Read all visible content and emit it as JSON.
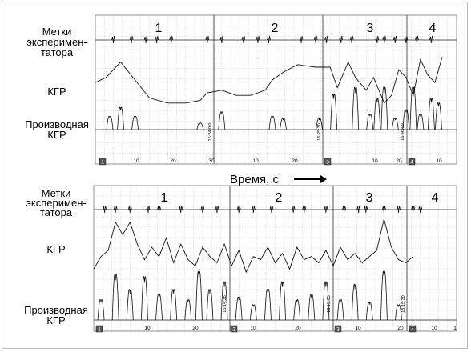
{
  "time_axis_label": "Время, с",
  "panels": [
    {
      "labels": [
        "Метки",
        "эксперимен-",
        "татора",
        "КГР",
        "Производная",
        "КГР"
      ],
      "segment_numbers": [
        "1",
        "2",
        "3",
        "4"
      ],
      "ticks": [
        "10",
        "20",
        "30",
        "10",
        "20",
        "10",
        "20",
        "10"
      ],
      "timestamps": [
        "16:24:0:0",
        "16:25:30",
        "16:46:09"
      ],
      "boxes": [
        "1",
        "3",
        "4"
      ]
    },
    {
      "labels": [
        "Метки",
        "эксперимен-",
        "татора",
        "КГР",
        "Производная",
        "КГР"
      ],
      "segment_numbers": [
        "1",
        "2",
        "3",
        "4"
      ],
      "ticks": [
        "10",
        "20",
        "10",
        "20",
        "10",
        "20",
        "10",
        "1"
      ],
      "timestamps": [
        "15:14:38",
        "15:15:05",
        "15:15:30"
      ],
      "boxes": [
        "1",
        "2",
        "3",
        "4"
      ]
    }
  ],
  "chart_data": [
    {
      "type": "line",
      "title": "",
      "xlabel": "Время, с",
      "series": [
        {
          "name": "Метки экспериментатора",
          "x": [
            5,
            10,
            14,
            17,
            21,
            31,
            35,
            41,
            45,
            48,
            57,
            61,
            64,
            68,
            71,
            78,
            80,
            83,
            86,
            89,
            93
          ]
        },
        {
          "name": "КГР",
          "x": [
            0,
            3,
            7,
            11,
            15,
            20,
            25,
            29,
            31,
            35,
            39,
            43,
            47,
            49,
            52,
            56,
            61,
            65,
            67,
            70,
            72,
            75,
            77,
            80,
            82,
            84,
            86,
            88,
            90,
            92,
            94,
            96
          ],
          "y": [
            0.45,
            0.55,
            0.85,
            0.5,
            0.15,
            0.05,
            0.05,
            0.1,
            0.25,
            0.3,
            0.2,
            0.2,
            0.3,
            0.5,
            0.65,
            0.8,
            0.75,
            0.75,
            0.35,
            0.85,
            0.55,
            0.3,
            0.55,
            0.05,
            0.2,
            0.7,
            0.55,
            0.2,
            0.9,
            0.6,
            0.45,
            0.95
          ]
        },
        {
          "name": "Производная КГР",
          "x": [
            4,
            7,
            11,
            29,
            35,
            49,
            52,
            62,
            66,
            72,
            76,
            78,
            80,
            83,
            86,
            88,
            90,
            93,
            95
          ],
          "y": [
            0.3,
            0.5,
            0.3,
            0.15,
            0.4,
            0.3,
            0.25,
            0.25,
            0.8,
            0.95,
            0.35,
            0.7,
            0.95,
            0.25,
            0.45,
            0.95,
            0.35,
            0.7,
            0.6
          ]
        }
      ]
    },
    {
      "type": "line",
      "title": "",
      "xlabel": "Время, с",
      "series": [
        {
          "name": "Метки экспериментатора",
          "x": [
            3,
            6,
            10,
            15,
            18,
            24,
            30,
            34,
            40,
            44,
            49,
            55,
            58,
            64,
            69,
            73,
            75,
            80,
            84,
            88,
            90
          ]
        },
        {
          "name": "КГР",
          "x": [
            0,
            2,
            4,
            6,
            8,
            10,
            12,
            14,
            16,
            18,
            20,
            22,
            24,
            26,
            28,
            30,
            32,
            34,
            36,
            38,
            40,
            42,
            44,
            46,
            48,
            50,
            52,
            54,
            56,
            58,
            60,
            62,
            64,
            66,
            68,
            70,
            72,
            74,
            76,
            78,
            80,
            82,
            84,
            86,
            88
          ],
          "y": [
            0.15,
            0.35,
            0.45,
            0.9,
            0.7,
            0.9,
            0.55,
            0.3,
            0.5,
            0.35,
            0.65,
            0.25,
            0.55,
            0.3,
            0.2,
            0.5,
            0.35,
            0.25,
            0.55,
            0.2,
            0.45,
            0.1,
            0.35,
            0.3,
            0.5,
            0.25,
            0.4,
            0.15,
            0.5,
            0.3,
            0.35,
            0.25,
            0.45,
            0.2,
            0.5,
            0.3,
            0.4,
            0.25,
            0.35,
            0.45,
            0.95,
            0.5,
            0.3,
            0.25,
            0.35
          ]
        },
        {
          "name": "Производная КГР",
          "x": [
            2,
            6,
            10,
            14,
            18,
            22,
            26,
            29,
            32,
            36,
            40,
            44,
            48,
            52,
            56,
            60,
            64,
            68,
            72,
            76,
            80,
            84
          ],
          "y": [
            0.4,
            0.9,
            0.6,
            0.85,
            0.5,
            0.6,
            0.4,
            0.95,
            0.6,
            0.75,
            0.45,
            0.3,
            0.6,
            0.75,
            0.4,
            0.5,
            0.75,
            0.4,
            0.7,
            0.35,
            0.95,
            0.3
          ]
        }
      ]
    }
  ]
}
